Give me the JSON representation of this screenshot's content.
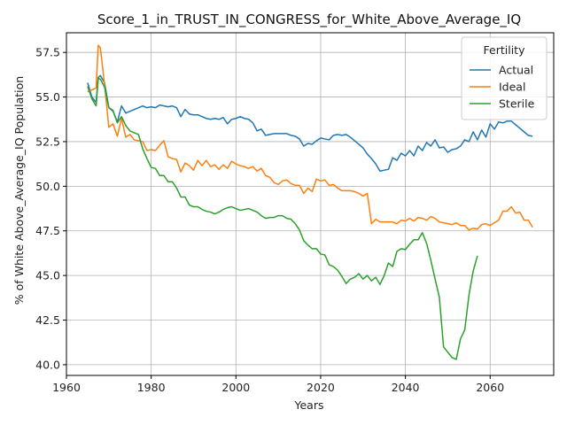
{
  "chart_data": {
    "type": "line",
    "title": "Score_1_in_TRUST_IN_CONGRESS_for_White_Above_Average_IQ",
    "xlabel": "Years",
    "ylabel": "% of White Above_Average_IQ Population",
    "xlim": [
      1960,
      2075
    ],
    "ylim": [
      39.4,
      58.6
    ],
    "xticks": [
      1960,
      1980,
      2000,
      2020,
      2040,
      2060
    ],
    "yticks": [
      40.0,
      42.5,
      45.0,
      47.5,
      50.0,
      52.5,
      55.0,
      57.5
    ],
    "grid": true,
    "legend": {
      "title": "Fertility",
      "placement": "top-right"
    },
    "series": [
      {
        "name": "Actual",
        "color": "#1f77b4",
        "points": [
          [
            1965,
            55.8
          ],
          [
            1966,
            55.0
          ],
          [
            1967,
            54.7
          ],
          [
            1967.5,
            56.1
          ],
          [
            1968,
            56.2
          ],
          [
            1969,
            55.8
          ],
          [
            1970,
            54.4
          ],
          [
            1971,
            54.2
          ],
          [
            1972,
            53.6
          ],
          [
            1973,
            54.5
          ],
          [
            1974,
            54.1
          ],
          [
            1975,
            54.2
          ],
          [
            1976,
            54.3
          ],
          [
            1977,
            54.4
          ],
          [
            1978,
            54.5
          ],
          [
            1979,
            54.4
          ],
          [
            1980,
            54.45
          ],
          [
            1981,
            54.4
          ],
          [
            1982,
            54.55
          ],
          [
            1983,
            54.5
          ],
          [
            1984,
            54.45
          ],
          [
            1985,
            54.5
          ],
          [
            1986,
            54.4
          ],
          [
            1987,
            53.9
          ],
          [
            1988,
            54.3
          ],
          [
            1989,
            54.05
          ],
          [
            1990,
            54.0
          ],
          [
            1991,
            54.0
          ],
          [
            1992,
            53.9
          ],
          [
            1993,
            53.8
          ],
          [
            1994,
            53.75
          ],
          [
            1995,
            53.8
          ],
          [
            1996,
            53.75
          ],
          [
            1997,
            53.85
          ],
          [
            1998,
            53.5
          ],
          [
            1999,
            53.75
          ],
          [
            2000,
            53.8
          ],
          [
            2001,
            53.9
          ],
          [
            2002,
            53.8
          ],
          [
            2003,
            53.75
          ],
          [
            2004,
            53.55
          ],
          [
            2005,
            53.1
          ],
          [
            2006,
            53.2
          ],
          [
            2007,
            52.85
          ],
          [
            2008,
            52.9
          ],
          [
            2009,
            52.95
          ],
          [
            2010,
            52.95
          ],
          [
            2011,
            52.95
          ],
          [
            2012,
            52.95
          ],
          [
            2013,
            52.85
          ],
          [
            2014,
            52.8
          ],
          [
            2015,
            52.65
          ],
          [
            2016,
            52.25
          ],
          [
            2017,
            52.4
          ],
          [
            2018,
            52.35
          ],
          [
            2019,
            52.55
          ],
          [
            2020,
            52.7
          ],
          [
            2021,
            52.65
          ],
          [
            2022,
            52.6
          ],
          [
            2023,
            52.85
          ],
          [
            2024,
            52.9
          ],
          [
            2025,
            52.85
          ],
          [
            2026,
            52.9
          ],
          [
            2027,
            52.75
          ],
          [
            2028,
            52.55
          ],
          [
            2029,
            52.35
          ],
          [
            2030,
            52.15
          ],
          [
            2031,
            51.8
          ],
          [
            2032,
            51.55
          ],
          [
            2033,
            51.25
          ],
          [
            2034,
            50.85
          ],
          [
            2035,
            50.9
          ],
          [
            2036,
            50.95
          ],
          [
            2037,
            51.6
          ],
          [
            2038,
            51.45
          ],
          [
            2039,
            51.85
          ],
          [
            2040,
            51.7
          ],
          [
            2041,
            52.0
          ],
          [
            2042,
            51.7
          ],
          [
            2043,
            52.25
          ],
          [
            2044,
            52.0
          ],
          [
            2045,
            52.45
          ],
          [
            2046,
            52.25
          ],
          [
            2047,
            52.6
          ],
          [
            2048,
            52.15
          ],
          [
            2049,
            52.2
          ],
          [
            2050,
            51.9
          ],
          [
            2051,
            52.05
          ],
          [
            2052,
            52.1
          ],
          [
            2053,
            52.25
          ],
          [
            2054,
            52.6
          ],
          [
            2055,
            52.5
          ],
          [
            2056,
            53.05
          ],
          [
            2057,
            52.6
          ],
          [
            2058,
            53.15
          ],
          [
            2059,
            52.75
          ],
          [
            2060,
            53.5
          ],
          [
            2061,
            53.2
          ],
          [
            2062,
            53.6
          ],
          [
            2063,
            53.55
          ],
          [
            2064,
            53.65
          ],
          [
            2065,
            53.65
          ],
          [
            2066,
            53.45
          ],
          [
            2067,
            53.25
          ],
          [
            2068,
            53.05
          ],
          [
            2069,
            52.85
          ],
          [
            2070,
            52.8
          ]
        ]
      },
      {
        "name": "Ideal",
        "color": "#ff7f0e",
        "points": [
          [
            1965,
            55.3
          ],
          [
            1966,
            55.4
          ],
          [
            1967,
            55.5
          ],
          [
            1967.5,
            57.9
          ],
          [
            1968,
            57.75
          ],
          [
            1969,
            55.7
          ],
          [
            1970,
            53.3
          ],
          [
            1971,
            53.5
          ],
          [
            1972,
            52.8
          ],
          [
            1973,
            53.8
          ],
          [
            1974,
            52.75
          ],
          [
            1975,
            52.9
          ],
          [
            1976,
            52.6
          ],
          [
            1977,
            52.55
          ],
          [
            1978,
            52.5
          ],
          [
            1979,
            52.0
          ],
          [
            1980,
            52.05
          ],
          [
            1981,
            52.0
          ],
          [
            1982,
            52.3
          ],
          [
            1983,
            52.55
          ],
          [
            1984,
            51.65
          ],
          [
            1985,
            51.55
          ],
          [
            1986,
            51.5
          ],
          [
            1987,
            50.8
          ],
          [
            1988,
            51.3
          ],
          [
            1989,
            51.15
          ],
          [
            1990,
            50.9
          ],
          [
            1991,
            51.45
          ],
          [
            1992,
            51.15
          ],
          [
            1993,
            51.45
          ],
          [
            1994,
            51.1
          ],
          [
            1995,
            51.2
          ],
          [
            1996,
            50.95
          ],
          [
            1997,
            51.2
          ],
          [
            1998,
            51.0
          ],
          [
            1999,
            51.4
          ],
          [
            2000,
            51.25
          ],
          [
            2001,
            51.15
          ],
          [
            2002,
            51.1
          ],
          [
            2003,
            51.0
          ],
          [
            2004,
            51.1
          ],
          [
            2005,
            50.85
          ],
          [
            2006,
            51.0
          ],
          [
            2007,
            50.6
          ],
          [
            2008,
            50.5
          ],
          [
            2009,
            50.2
          ],
          [
            2010,
            50.1
          ],
          [
            2011,
            50.3
          ],
          [
            2012,
            50.35
          ],
          [
            2013,
            50.15
          ],
          [
            2014,
            50.05
          ],
          [
            2015,
            50.05
          ],
          [
            2016,
            49.6
          ],
          [
            2017,
            49.9
          ],
          [
            2018,
            49.7
          ],
          [
            2019,
            50.4
          ],
          [
            2020,
            50.3
          ],
          [
            2021,
            50.35
          ],
          [
            2022,
            50.05
          ],
          [
            2023,
            50.1
          ],
          [
            2024,
            49.9
          ],
          [
            2025,
            49.75
          ],
          [
            2026,
            49.75
          ],
          [
            2027,
            49.75
          ],
          [
            2028,
            49.7
          ],
          [
            2029,
            49.6
          ],
          [
            2030,
            49.45
          ],
          [
            2031,
            49.6
          ],
          [
            2032,
            47.9
          ],
          [
            2033,
            48.15
          ],
          [
            2034,
            48.0
          ],
          [
            2035,
            48.0
          ],
          [
            2036,
            48.0
          ],
          [
            2037,
            48.0
          ],
          [
            2038,
            47.9
          ],
          [
            2039,
            48.1
          ],
          [
            2040,
            48.05
          ],
          [
            2041,
            48.2
          ],
          [
            2042,
            48.05
          ],
          [
            2043,
            48.25
          ],
          [
            2044,
            48.2
          ],
          [
            2045,
            48.1
          ],
          [
            2046,
            48.3
          ],
          [
            2047,
            48.2
          ],
          [
            2048,
            48.0
          ],
          [
            2049,
            47.95
          ],
          [
            2050,
            47.9
          ],
          [
            2051,
            47.85
          ],
          [
            2052,
            47.95
          ],
          [
            2053,
            47.8
          ],
          [
            2054,
            47.8
          ],
          [
            2055,
            47.55
          ],
          [
            2056,
            47.65
          ],
          [
            2057,
            47.6
          ],
          [
            2058,
            47.85
          ],
          [
            2059,
            47.9
          ],
          [
            2060,
            47.8
          ],
          [
            2061,
            47.95
          ],
          [
            2062,
            48.1
          ],
          [
            2063,
            48.6
          ],
          [
            2064,
            48.6
          ],
          [
            2065,
            48.85
          ],
          [
            2066,
            48.5
          ],
          [
            2067,
            48.55
          ],
          [
            2068,
            48.1
          ],
          [
            2069,
            48.1
          ],
          [
            2070,
            47.7
          ]
        ]
      },
      {
        "name": "Sterile",
        "color": "#2ca02c",
        "points": [
          [
            1965,
            55.6
          ],
          [
            1966,
            54.9
          ],
          [
            1967,
            54.5
          ],
          [
            1967.5,
            56.05
          ],
          [
            1968,
            56.0
          ],
          [
            1969,
            55.55
          ],
          [
            1970,
            54.4
          ],
          [
            1971,
            54.25
          ],
          [
            1972,
            53.55
          ],
          [
            1973,
            53.9
          ],
          [
            1974,
            53.4
          ],
          [
            1975,
            53.1
          ],
          [
            1976,
            53.0
          ],
          [
            1977,
            52.9
          ],
          [
            1978,
            52.1
          ],
          [
            1979,
            51.55
          ],
          [
            1980,
            51.05
          ],
          [
            1981,
            51.0
          ],
          [
            1982,
            50.6
          ],
          [
            1983,
            50.6
          ],
          [
            1984,
            50.25
          ],
          [
            1985,
            50.25
          ],
          [
            1986,
            49.9
          ],
          [
            1987,
            49.4
          ],
          [
            1988,
            49.4
          ],
          [
            1989,
            48.95
          ],
          [
            1990,
            48.85
          ],
          [
            1991,
            48.85
          ],
          [
            1992,
            48.7
          ],
          [
            1993,
            48.6
          ],
          [
            1994,
            48.55
          ],
          [
            1995,
            48.45
          ],
          [
            1996,
            48.55
          ],
          [
            1997,
            48.7
          ],
          [
            1998,
            48.8
          ],
          [
            1999,
            48.85
          ],
          [
            2000,
            48.75
          ],
          [
            2001,
            48.65
          ],
          [
            2002,
            48.7
          ],
          [
            2003,
            48.75
          ],
          [
            2004,
            48.65
          ],
          [
            2005,
            48.55
          ],
          [
            2006,
            48.35
          ],
          [
            2007,
            48.2
          ],
          [
            2008,
            48.25
          ],
          [
            2009,
            48.25
          ],
          [
            2010,
            48.35
          ],
          [
            2011,
            48.35
          ],
          [
            2012,
            48.2
          ],
          [
            2013,
            48.15
          ],
          [
            2014,
            47.9
          ],
          [
            2015,
            47.55
          ],
          [
            2016,
            46.95
          ],
          [
            2017,
            46.7
          ],
          [
            2018,
            46.5
          ],
          [
            2019,
            46.5
          ],
          [
            2020,
            46.2
          ],
          [
            2021,
            46.15
          ],
          [
            2022,
            45.6
          ],
          [
            2023,
            45.5
          ],
          [
            2024,
            45.3
          ],
          [
            2025,
            44.95
          ],
          [
            2026,
            44.55
          ],
          [
            2027,
            44.8
          ],
          [
            2028,
            44.9
          ],
          [
            2029,
            45.1
          ],
          [
            2030,
            44.8
          ],
          [
            2031,
            45.0
          ],
          [
            2032,
            44.7
          ],
          [
            2033,
            44.9
          ],
          [
            2034,
            44.5
          ],
          [
            2035,
            45.0
          ],
          [
            2036,
            45.7
          ],
          [
            2037,
            45.5
          ],
          [
            2038,
            46.35
          ],
          [
            2039,
            46.5
          ],
          [
            2040,
            46.45
          ],
          [
            2041,
            46.75
          ],
          [
            2042,
            47.0
          ],
          [
            2043,
            47.0
          ],
          [
            2044,
            47.4
          ],
          [
            2045,
            46.8
          ],
          [
            2046,
            45.85
          ],
          [
            2047,
            44.8
          ],
          [
            2048,
            43.8
          ],
          [
            2049,
            41.0
          ],
          [
            2050,
            40.7
          ],
          [
            2051,
            40.4
          ],
          [
            2052,
            40.3
          ],
          [
            2053,
            41.45
          ],
          [
            2054,
            41.95
          ],
          [
            2055,
            43.9
          ],
          [
            2056,
            45.25
          ],
          [
            2057,
            46.1
          ]
        ]
      }
    ]
  }
}
